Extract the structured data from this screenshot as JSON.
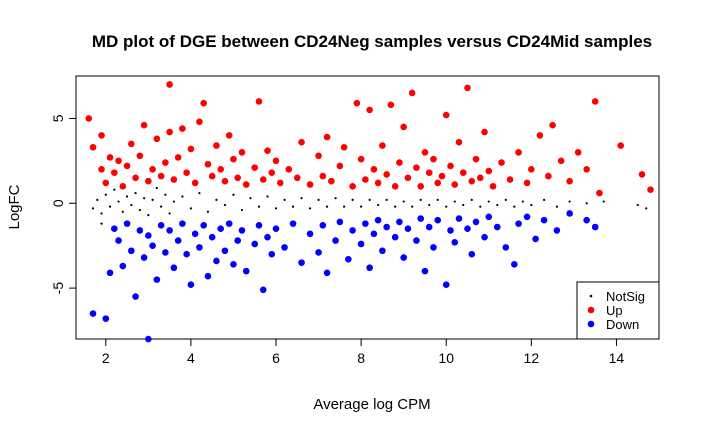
{
  "chart_data": {
    "type": "scatter",
    "title": "MD plot of DGE between CD24Neg samples versus CD24Mid samples",
    "xlabel": "Average log CPM",
    "ylabel": "LogFC",
    "xlim": [
      1.3,
      15.0
    ],
    "ylim": [
      -8.0,
      7.5
    ],
    "x_ticks": [
      2,
      4,
      6,
      8,
      10,
      12,
      14
    ],
    "y_ticks": [
      -5,
      0,
      5
    ],
    "legend_position": "bottom-right",
    "colors": {
      "NotSig": "#000000",
      "Up": "#ff0000",
      "Down": "#0000ff"
    },
    "series": [
      {
        "name": "NotSig",
        "marker": "small-dot",
        "points": [
          [
            1.7,
            -0.3
          ],
          [
            1.8,
            0.2
          ],
          [
            1.9,
            -0.6
          ],
          [
            2.0,
            0.5
          ],
          [
            2.1,
            -0.2
          ],
          [
            2.2,
            0.8
          ],
          [
            2.3,
            0.1
          ],
          [
            2.4,
            -0.5
          ],
          [
            2.5,
            0.4
          ],
          [
            2.6,
            -0.1
          ],
          [
            2.7,
            0.6
          ],
          [
            2.8,
            -0.4
          ],
          [
            2.9,
            0.3
          ],
          [
            3.0,
            -0.7
          ],
          [
            3.1,
            0.2
          ],
          [
            3.2,
            0.9
          ],
          [
            3.3,
            -0.2
          ],
          [
            3.4,
            0.5
          ],
          [
            3.5,
            -0.6
          ],
          [
            3.6,
            0.1
          ],
          [
            3.8,
            0.4
          ],
          [
            4.0,
            -0.3
          ],
          [
            4.2,
            0.6
          ],
          [
            4.4,
            -0.5
          ],
          [
            4.6,
            0.2
          ],
          [
            4.8,
            -0.1
          ],
          [
            5.0,
            0.5
          ],
          [
            5.2,
            -0.4
          ],
          [
            5.4,
            0.3
          ],
          [
            5.6,
            -0.2
          ],
          [
            5.8,
            0.4
          ],
          [
            6.0,
            -0.3
          ],
          [
            6.2,
            0.2
          ],
          [
            6.4,
            -0.2
          ],
          [
            6.6,
            0.3
          ],
          [
            6.8,
            -0.3
          ],
          [
            7.0,
            0.2
          ],
          [
            7.2,
            -0.2
          ],
          [
            7.4,
            0.3
          ],
          [
            7.6,
            -0.2
          ],
          [
            7.8,
            0.2
          ],
          [
            8.0,
            -0.2
          ],
          [
            8.2,
            0.2
          ],
          [
            8.4,
            -0.1
          ],
          [
            8.6,
            0.2
          ],
          [
            8.8,
            -0.2
          ],
          [
            9.0,
            0.1
          ],
          [
            9.2,
            -0.2
          ],
          [
            9.4,
            0.2
          ],
          [
            9.6,
            -0.1
          ],
          [
            9.8,
            0.2
          ],
          [
            10.0,
            -0.2
          ],
          [
            10.2,
            0.1
          ],
          [
            10.4,
            -0.1
          ],
          [
            10.6,
            0.2
          ],
          [
            10.8,
            -0.2
          ],
          [
            11.0,
            0.1
          ],
          [
            11.2,
            -0.1
          ],
          [
            11.4,
            0.2
          ],
          [
            11.6,
            -0.2
          ],
          [
            11.8,
            0.1
          ],
          [
            12.0,
            -0.1
          ],
          [
            12.3,
            0.2
          ],
          [
            12.6,
            -0.2
          ],
          [
            12.9,
            0.1
          ],
          [
            13.3,
            0.0
          ],
          [
            13.7,
            0.1
          ],
          [
            14.5,
            -0.1
          ],
          [
            14.7,
            -0.3
          ],
          [
            1.9,
            -1.2
          ]
        ]
      },
      {
        "name": "Up",
        "marker": "dot",
        "points": [
          [
            1.6,
            5.0
          ],
          [
            1.7,
            3.3
          ],
          [
            1.9,
            4.0
          ],
          [
            1.9,
            2.0
          ],
          [
            2.0,
            1.2
          ],
          [
            2.1,
            2.7
          ],
          [
            2.2,
            1.8
          ],
          [
            2.3,
            2.5
          ],
          [
            2.4,
            1.0
          ],
          [
            2.5,
            2.2
          ],
          [
            2.6,
            3.5
          ],
          [
            2.7,
            1.5
          ],
          [
            2.8,
            2.8
          ],
          [
            2.9,
            4.6
          ],
          [
            3.0,
            1.3
          ],
          [
            3.1,
            2.0
          ],
          [
            3.2,
            3.8
          ],
          [
            3.3,
            1.6
          ],
          [
            3.4,
            2.4
          ],
          [
            3.5,
            7.0
          ],
          [
            3.5,
            4.2
          ],
          [
            3.6,
            1.4
          ],
          [
            3.7,
            2.7
          ],
          [
            3.8,
            4.4
          ],
          [
            3.9,
            1.8
          ],
          [
            4.0,
            3.2
          ],
          [
            4.1,
            1.2
          ],
          [
            4.2,
            4.8
          ],
          [
            4.3,
            5.9
          ],
          [
            4.4,
            2.3
          ],
          [
            4.5,
            1.6
          ],
          [
            4.6,
            3.4
          ],
          [
            4.7,
            2.0
          ],
          [
            4.8,
            1.3
          ],
          [
            4.9,
            4.0
          ],
          [
            5.0,
            2.6
          ],
          [
            5.1,
            1.5
          ],
          [
            5.2,
            3.0
          ],
          [
            5.3,
            1.1
          ],
          [
            5.5,
            2.1
          ],
          [
            5.6,
            6.0
          ],
          [
            5.7,
            1.4
          ],
          [
            5.8,
            3.1
          ],
          [
            5.9,
            1.8
          ],
          [
            6.0,
            2.5
          ],
          [
            6.1,
            1.2
          ],
          [
            6.3,
            2.0
          ],
          [
            6.5,
            1.5
          ],
          [
            6.6,
            3.6
          ],
          [
            6.8,
            1.1
          ],
          [
            7.0,
            2.8
          ],
          [
            7.1,
            1.6
          ],
          [
            7.2,
            3.9
          ],
          [
            7.3,
            1.3
          ],
          [
            7.5,
            2.2
          ],
          [
            7.6,
            3.3
          ],
          [
            7.8,
            1.0
          ],
          [
            7.9,
            5.9
          ],
          [
            8.0,
            2.6
          ],
          [
            8.1,
            1.4
          ],
          [
            8.2,
            5.5
          ],
          [
            8.3,
            2.0
          ],
          [
            8.4,
            1.2
          ],
          [
            8.5,
            3.4
          ],
          [
            8.6,
            1.7
          ],
          [
            8.7,
            5.8
          ],
          [
            8.8,
            1.0
          ],
          [
            8.9,
            2.4
          ],
          [
            9.0,
            4.5
          ],
          [
            9.1,
            1.5
          ],
          [
            9.2,
            6.5
          ],
          [
            9.3,
            2.1
          ],
          [
            9.4,
            1.0
          ],
          [
            9.5,
            3.0
          ],
          [
            9.6,
            1.8
          ],
          [
            9.7,
            2.6
          ],
          [
            9.8,
            1.2
          ],
          [
            9.9,
            1.6
          ],
          [
            10.0,
            5.2
          ],
          [
            10.1,
            2.2
          ],
          [
            10.2,
            1.1
          ],
          [
            10.3,
            3.6
          ],
          [
            10.4,
            1.8
          ],
          [
            10.5,
            6.8
          ],
          [
            10.6,
            1.3
          ],
          [
            10.7,
            2.6
          ],
          [
            10.8,
            1.5
          ],
          [
            10.9,
            4.2
          ],
          [
            11.0,
            1.9
          ],
          [
            11.1,
            1.0
          ],
          [
            11.3,
            2.4
          ],
          [
            11.5,
            1.4
          ],
          [
            11.7,
            3.0
          ],
          [
            11.9,
            1.2
          ],
          [
            12.0,
            2.0
          ],
          [
            12.2,
            4.0
          ],
          [
            12.4,
            1.6
          ],
          [
            12.5,
            4.6
          ],
          [
            12.7,
            2.5
          ],
          [
            12.9,
            1.3
          ],
          [
            13.1,
            3.0
          ],
          [
            13.3,
            2.0
          ],
          [
            13.5,
            6.0
          ],
          [
            13.6,
            0.6
          ],
          [
            14.1,
            3.4
          ],
          [
            14.6,
            1.7
          ],
          [
            14.8,
            0.8
          ]
        ]
      },
      {
        "name": "Down",
        "marker": "dot",
        "points": [
          [
            1.7,
            -6.5
          ],
          [
            2.0,
            -6.8
          ],
          [
            2.1,
            -4.1
          ],
          [
            2.2,
            -1.5
          ],
          [
            2.3,
            -2.2
          ],
          [
            2.4,
            -3.7
          ],
          [
            2.5,
            -1.2
          ],
          [
            2.6,
            -2.8
          ],
          [
            2.7,
            -5.5
          ],
          [
            2.8,
            -1.6
          ],
          [
            2.9,
            -3.2
          ],
          [
            3.0,
            -8.0
          ],
          [
            3.0,
            -1.9
          ],
          [
            3.1,
            -2.5
          ],
          [
            3.2,
            -4.5
          ],
          [
            3.3,
            -1.3
          ],
          [
            3.4,
            -2.9
          ],
          [
            3.5,
            -1.6
          ],
          [
            3.6,
            -3.8
          ],
          [
            3.7,
            -2.2
          ],
          [
            3.8,
            -1.2
          ],
          [
            3.9,
            -3.0
          ],
          [
            4.0,
            -4.8
          ],
          [
            4.1,
            -1.8
          ],
          [
            4.2,
            -2.6
          ],
          [
            4.3,
            -1.3
          ],
          [
            4.4,
            -4.3
          ],
          [
            4.5,
            -2.0
          ],
          [
            4.6,
            -3.4
          ],
          [
            4.7,
            -1.5
          ],
          [
            4.8,
            -2.8
          ],
          [
            4.9,
            -1.2
          ],
          [
            5.0,
            -3.6
          ],
          [
            5.1,
            -2.2
          ],
          [
            5.2,
            -1.6
          ],
          [
            5.3,
            -4.0
          ],
          [
            5.5,
            -2.4
          ],
          [
            5.6,
            -1.3
          ],
          [
            5.7,
            -5.1
          ],
          [
            5.8,
            -2.0
          ],
          [
            5.9,
            -3.0
          ],
          [
            6.0,
            -1.5
          ],
          [
            6.2,
            -2.6
          ],
          [
            6.4,
            -1.2
          ],
          [
            6.6,
            -3.5
          ],
          [
            6.8,
            -1.8
          ],
          [
            7.0,
            -2.9
          ],
          [
            7.1,
            -1.3
          ],
          [
            7.2,
            -4.1
          ],
          [
            7.4,
            -2.2
          ],
          [
            7.5,
            -1.1
          ],
          [
            7.7,
            -3.3
          ],
          [
            7.8,
            -1.6
          ],
          [
            8.0,
            -2.4
          ],
          [
            8.1,
            -1.2
          ],
          [
            8.2,
            -3.8
          ],
          [
            8.3,
            -1.8
          ],
          [
            8.4,
            -1.0
          ],
          [
            8.5,
            -2.8
          ],
          [
            8.6,
            -1.4
          ],
          [
            8.8,
            -2.0
          ],
          [
            8.9,
            -1.1
          ],
          [
            9.0,
            -3.2
          ],
          [
            9.1,
            -1.5
          ],
          [
            9.3,
            -2.2
          ],
          [
            9.4,
            -0.9
          ],
          [
            9.5,
            -4.0
          ],
          [
            9.6,
            -1.4
          ],
          [
            9.7,
            -2.6
          ],
          [
            9.8,
            -1.0
          ],
          [
            10.0,
            -4.8
          ],
          [
            10.1,
            -1.6
          ],
          [
            10.2,
            -2.3
          ],
          [
            10.3,
            -0.9
          ],
          [
            10.5,
            -1.5
          ],
          [
            10.6,
            -3.0
          ],
          [
            10.7,
            -1.1
          ],
          [
            10.9,
            -2.0
          ],
          [
            11.0,
            -0.8
          ],
          [
            11.2,
            -1.4
          ],
          [
            11.4,
            -2.6
          ],
          [
            11.6,
            -3.6
          ],
          [
            11.7,
            -1.2
          ],
          [
            11.9,
            -0.8
          ],
          [
            12.1,
            -2.1
          ],
          [
            12.3,
            -1.0
          ],
          [
            12.6,
            -1.6
          ],
          [
            12.9,
            -0.6
          ],
          [
            13.3,
            -1.0
          ],
          [
            13.5,
            -1.4
          ]
        ]
      }
    ],
    "legend": [
      {
        "name": "NotSig",
        "label": "NotSig"
      },
      {
        "name": "Up",
        "label": "Up"
      },
      {
        "name": "Down",
        "label": "Down"
      }
    ]
  }
}
